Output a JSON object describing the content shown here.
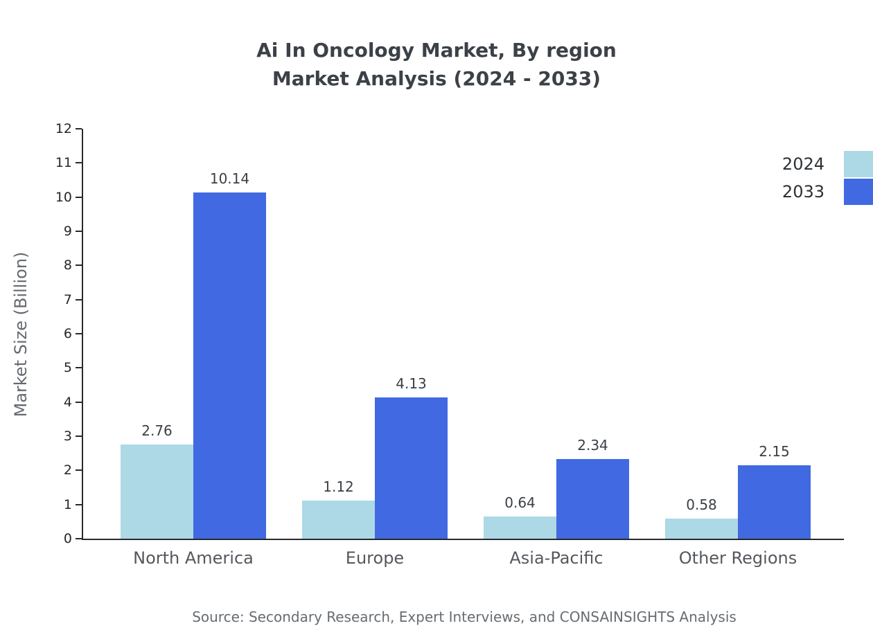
{
  "title_line1": "Ai In Oncology Market, By region",
  "title_line2": "Market Analysis (2024 - 2033)",
  "source": "Source: Secondary Research, Expert Interviews, and CONSAINSIGHTS Analysis",
  "chart_data": {
    "type": "bar",
    "title": "Ai In Oncology Market, By region Market Analysis (2024 - 2033)",
    "categories": [
      "North America",
      "Europe",
      "Asia-Pacific",
      "Other Regions"
    ],
    "series": [
      {
        "name": "2024",
        "color": "#add8e6",
        "values": [
          2.76,
          1.12,
          0.64,
          0.58
        ]
      },
      {
        "name": "2033",
        "color": "#4169e1",
        "values": [
          10.14,
          4.13,
          2.34,
          2.15
        ]
      }
    ],
    "xlabel": "",
    "ylabel": "Market Size (Billion)",
    "ylim": [
      0,
      12
    ],
    "ytick_step": 1,
    "grid": false,
    "legend_position": "top-right"
  }
}
